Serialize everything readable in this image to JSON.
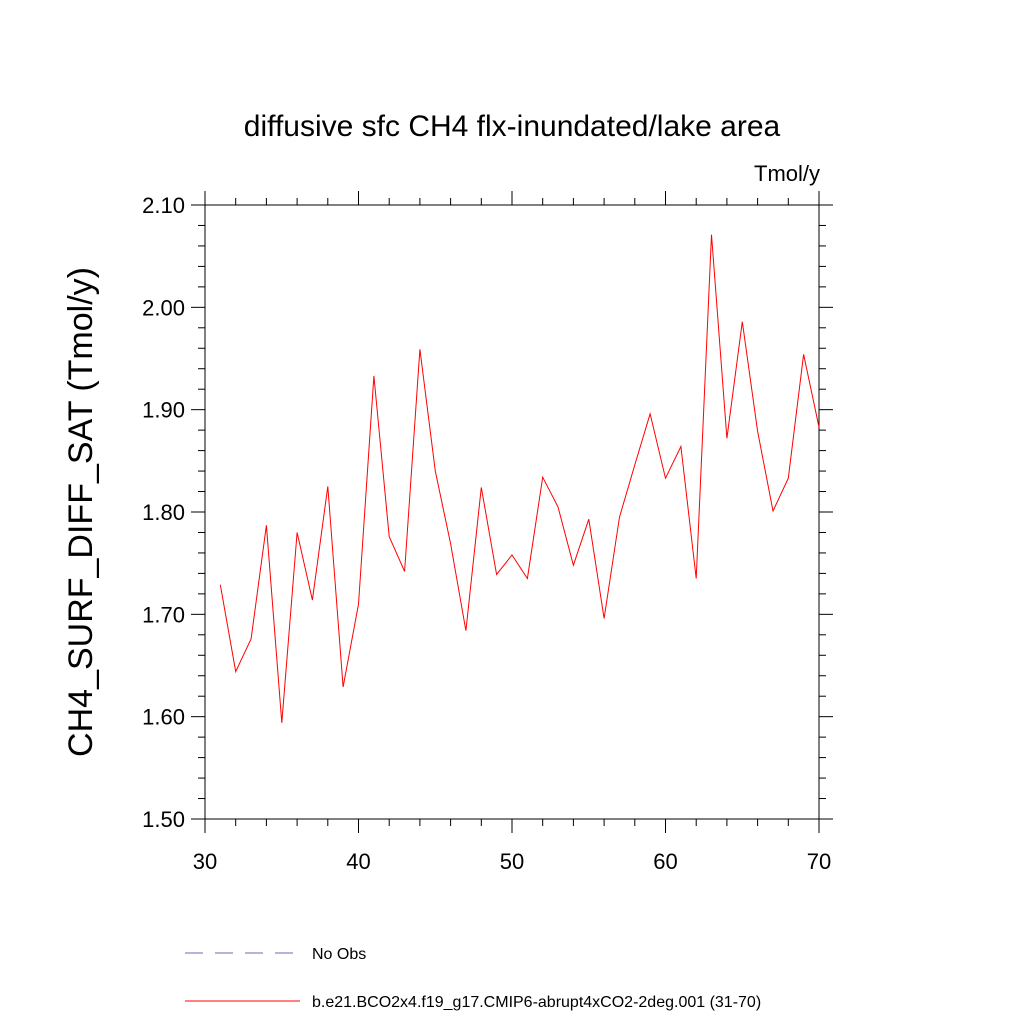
{
  "chart_data": {
    "type": "line",
    "title": "diffusive sfc CH4 flx-inundated/lake area",
    "units_label": "Tmol/y",
    "ylabel": "CH4_SURF_DIFF_SAT  (Tmol/y)",
    "xlabel": "",
    "xlim": [
      30,
      70
    ],
    "ylim": [
      1.5,
      2.1
    ],
    "x_ticks": [
      30,
      40,
      50,
      60,
      70
    ],
    "x_tick_labels": [
      "30",
      "40",
      "50",
      "60",
      "70"
    ],
    "y_ticks": [
      1.5,
      1.6,
      1.7,
      1.8,
      1.9,
      2.0,
      2.1
    ],
    "y_tick_labels": [
      "1.50",
      "1.60",
      "1.70",
      "1.80",
      "1.90",
      "2.00",
      "2.10"
    ],
    "grid": false,
    "legend_position": "bottom",
    "series": [
      {
        "name": "b.e21.BCO2x4.f19_g17.CMIP6-abrupt4xCO2-2deg.001 (31-70)",
        "color": "#ff0000",
        "style": "solid",
        "x": [
          31,
          32,
          33,
          34,
          35,
          36,
          37,
          38,
          39,
          40,
          41,
          42,
          43,
          44,
          45,
          46,
          47,
          48,
          49,
          50,
          51,
          52,
          53,
          54,
          55,
          56,
          57,
          58,
          59,
          60,
          61,
          62,
          63,
          64,
          65,
          66,
          67,
          68,
          69,
          70
        ],
        "y": [
          1.729,
          1.644,
          1.676,
          1.787,
          1.594,
          1.78,
          1.714,
          1.825,
          1.629,
          1.71,
          1.933,
          1.776,
          1.742,
          1.959,
          1.84,
          1.769,
          1.684,
          1.824,
          1.739,
          1.758,
          1.735,
          1.834,
          1.805,
          1.748,
          1.793,
          1.696,
          1.795,
          1.846,
          1.896,
          1.833,
          1.864,
          1.735,
          2.071,
          1.872,
          1.986,
          1.879,
          1.801,
          1.833,
          1.954,
          1.883
        ]
      }
    ],
    "legend": [
      {
        "label": "No Obs",
        "color": "#6a6ab8",
        "style": "dashed"
      },
      {
        "label": "b.e21.BCO2x4.f19_g17.CMIP6-abrupt4xCO2-2deg.001 (31-70)",
        "color": "#ff0000",
        "style": "solid"
      }
    ]
  }
}
